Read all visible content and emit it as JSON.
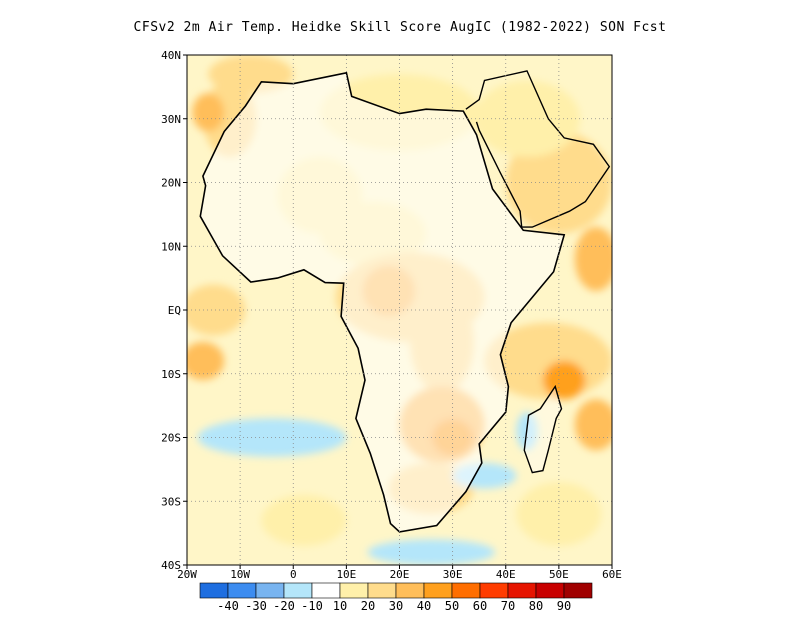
{
  "title": "CFSv2  2m Air Temp. Heidke Skill Score AugIC (1982-2022) SON Fcst",
  "map": {
    "lon_range": [
      -20,
      60
    ],
    "lat_range": [
      -40,
      40
    ],
    "lat_ticks": [
      {
        "value": 40,
        "label": "40N"
      },
      {
        "value": 30,
        "label": "30N"
      },
      {
        "value": 20,
        "label": "20N"
      },
      {
        "value": 10,
        "label": "10N"
      },
      {
        "value": 0,
        "label": "EQ"
      },
      {
        "value": -10,
        "label": "10S"
      },
      {
        "value": -20,
        "label": "20S"
      },
      {
        "value": -30,
        "label": "30S"
      },
      {
        "value": -40,
        "label": "40S"
      }
    ],
    "lon_ticks": [
      {
        "value": -20,
        "label": "20W"
      },
      {
        "value": -10,
        "label": "10W"
      },
      {
        "value": 0,
        "label": "0"
      },
      {
        "value": 10,
        "label": "10E"
      },
      {
        "value": 20,
        "label": "20E"
      },
      {
        "value": 30,
        "label": "30E"
      },
      {
        "value": 40,
        "label": "40E"
      },
      {
        "value": 50,
        "label": "50E"
      },
      {
        "value": 60,
        "label": "60E"
      }
    ],
    "grid": "dotted",
    "africa_outline": [
      [
        -17,
        21
      ],
      [
        -13,
        28
      ],
      [
        -9,
        32
      ],
      [
        -6,
        35.8
      ],
      [
        0,
        35.5
      ],
      [
        10,
        37.2
      ],
      [
        11,
        33.5
      ],
      [
        20,
        30.8
      ],
      [
        25,
        31.5
      ],
      [
        32,
        31.2
      ],
      [
        34.5,
        27.5
      ],
      [
        37.5,
        19
      ],
      [
        43.3,
        12.5
      ],
      [
        51,
        11.8
      ],
      [
        49,
        6
      ],
      [
        41,
        -2
      ],
      [
        39,
        -7
      ],
      [
        40.5,
        -12
      ],
      [
        40,
        -16
      ],
      [
        35,
        -21
      ],
      [
        35.5,
        -24
      ],
      [
        32.5,
        -28.5
      ],
      [
        27,
        -33.8
      ],
      [
        20,
        -34.8
      ],
      [
        18.3,
        -33.5
      ],
      [
        17,
        -29
      ],
      [
        14.5,
        -22.5
      ],
      [
        11.8,
        -17
      ],
      [
        13.5,
        -11
      ],
      [
        12.2,
        -6
      ],
      [
        9,
        -1
      ],
      [
        9.5,
        4.2
      ],
      [
        6,
        4.3
      ],
      [
        2,
        6.3
      ],
      [
        -3,
        5
      ],
      [
        -8,
        4.4
      ],
      [
        -13.3,
        8.5
      ],
      [
        -15,
        11
      ],
      [
        -17.5,
        14.7
      ],
      [
        -16.5,
        19.5
      ],
      [
        -17,
        21
      ]
    ],
    "madagascar_outline": [
      [
        49.3,
        -12
      ],
      [
        50.5,
        -15.5
      ],
      [
        49.5,
        -17
      ],
      [
        48,
        -22
      ],
      [
        47,
        -25.2
      ],
      [
        45,
        -25.5
      ],
      [
        43.5,
        -22
      ],
      [
        44.3,
        -16.5
      ],
      [
        46.5,
        -15.5
      ],
      [
        49.3,
        -12
      ]
    ],
    "arabia_outline": [
      [
        32.5,
        31.5
      ],
      [
        35,
        33
      ],
      [
        36,
        36
      ],
      [
        44,
        37.5
      ],
      [
        48,
        30
      ],
      [
        51,
        27
      ],
      [
        56.5,
        26
      ],
      [
        59.5,
        22.5
      ],
      [
        55,
        17
      ],
      [
        52,
        15.5
      ],
      [
        45,
        13
      ],
      [
        43,
        13
      ],
      [
        42.7,
        15.5
      ],
      [
        39,
        21.5
      ],
      [
        35,
        28.2
      ],
      [
        34.5,
        29.5
      ]
    ]
  },
  "skill_patches": [
    {
      "lon": -12,
      "lat": 30,
      "rx": 5,
      "ry": 6,
      "level": 20
    },
    {
      "lon": -16,
      "lat": 31,
      "rx": 3,
      "ry": 3,
      "level": 30
    },
    {
      "lon": -8,
      "lat": 37,
      "rx": 8,
      "ry": 3,
      "level": 20
    },
    {
      "lon": 20,
      "lat": 31,
      "rx": 15,
      "ry": 6,
      "level": 10
    },
    {
      "lon": 5,
      "lat": 18,
      "rx": 8,
      "ry": 6,
      "level": 10
    },
    {
      "lon": 15,
      "lat": 12,
      "rx": 10,
      "ry": 5,
      "level": 10
    },
    {
      "lon": 22,
      "lat": 2,
      "rx": 14,
      "ry": 7,
      "level": 20
    },
    {
      "lon": 18,
      "lat": 3,
      "rx": 5,
      "ry": 4,
      "level": 30
    },
    {
      "lon": -15,
      "lat": 0,
      "rx": 6,
      "ry": 4,
      "level": 20
    },
    {
      "lon": -17,
      "lat": -8,
      "rx": 4,
      "ry": 3,
      "level": 30
    },
    {
      "lon": 28,
      "lat": -5,
      "rx": 6,
      "ry": 8,
      "level": 20
    },
    {
      "lon": 28,
      "lat": -18,
      "rx": 8,
      "ry": 6,
      "level": 30
    },
    {
      "lon": 30,
      "lat": -20,
      "rx": 4,
      "ry": 3,
      "level": 40
    },
    {
      "lon": 26,
      "lat": -28,
      "rx": 8,
      "ry": 4,
      "level": 20
    },
    {
      "lon": 48,
      "lat": -8,
      "rx": 12,
      "ry": 6,
      "level": 20
    },
    {
      "lon": 51,
      "lat": -11,
      "rx": 4,
      "ry": 3,
      "level": 40
    },
    {
      "lon": 57,
      "lat": -18,
      "rx": 4,
      "ry": 4,
      "level": 30
    },
    {
      "lon": 57,
      "lat": 8,
      "rx": 4,
      "ry": 5,
      "level": 30
    },
    {
      "lon": 50,
      "lat": 20,
      "rx": 10,
      "ry": 8,
      "level": 20
    },
    {
      "lon": 44,
      "lat": 30,
      "rx": 10,
      "ry": 6,
      "level": 10
    },
    {
      "lon": 2,
      "lat": -33,
      "rx": 8,
      "ry": 4,
      "level": 10
    },
    {
      "lon": 50,
      "lat": -32,
      "rx": 8,
      "ry": 5,
      "level": 10
    },
    {
      "lon": -4,
      "lat": -20,
      "rx": 14,
      "ry": 3,
      "level": -10
    },
    {
      "lon": 44,
      "lat": -19,
      "rx": 2,
      "ry": 3,
      "level": -10
    },
    {
      "lon": 26,
      "lat": -38,
      "rx": 12,
      "ry": 2,
      "level": -10
    },
    {
      "lon": 36,
      "lat": -26,
      "rx": 6,
      "ry": 2,
      "level": -10
    }
  ],
  "colorbar": {
    "labels": [
      "-40",
      "-30",
      "-20",
      "-10",
      "10",
      "20",
      "30",
      "40",
      "50",
      "60",
      "70",
      "80",
      "90"
    ],
    "colors": [
      "#1e6ee0",
      "#3c8cf0",
      "#78b4f0",
      "#b4e6fa",
      "#ffffff",
      "#fff0aa",
      "#ffdc8c",
      "#ffbe5a",
      "#ffa01e",
      "#ff6e00",
      "#ff3c00",
      "#e61400",
      "#c80000",
      "#a00000"
    ]
  },
  "legend_colors": {
    "-10": "#b4e6fa",
    "10": "#fff0aa",
    "20": "#ffdc8c",
    "30": "#ffbe5a",
    "40": "#ffa01e"
  }
}
